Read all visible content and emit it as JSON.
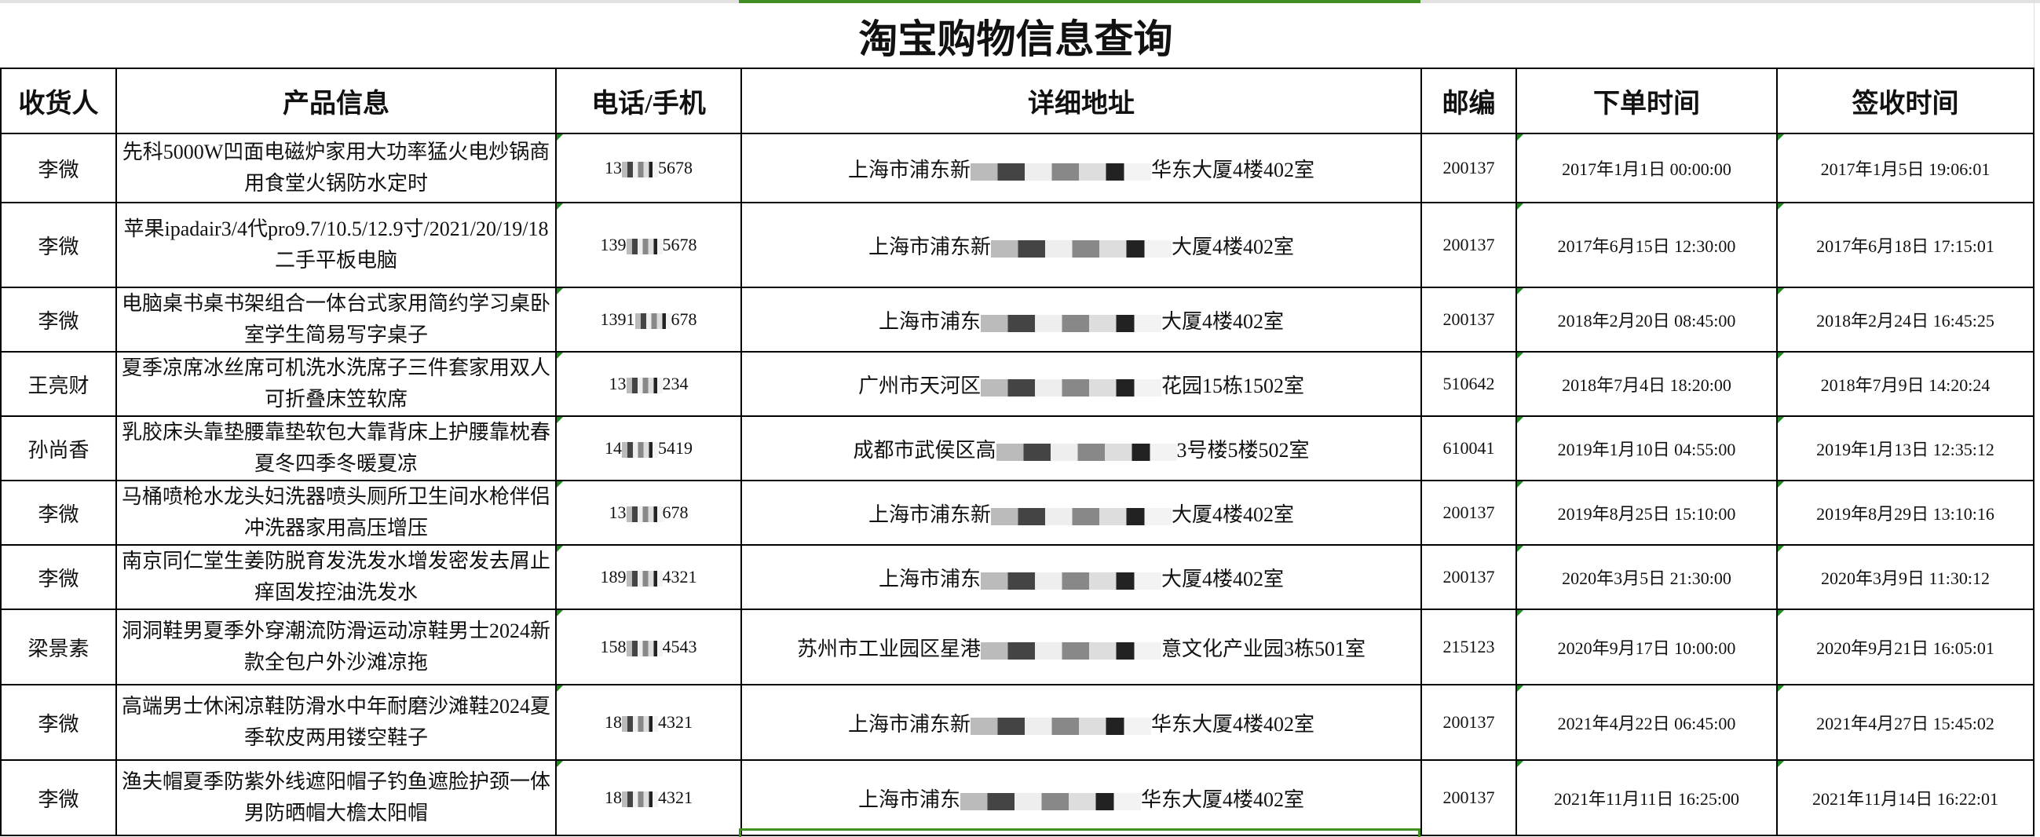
{
  "title": "淘宝购物信息查询",
  "columns": [
    "收货人",
    "产品信息",
    "电话/手机",
    "详细地址",
    "邮编",
    "下单时间",
    "签收时间"
  ],
  "colors": {
    "selection": "#3f8f22",
    "comment_marker": "#1f8a1f"
  },
  "rows": [
    {
      "name": "李微",
      "product": "先科5000W凹面电磁炉家用大功率猛火电炒锅商用食堂火锅防水定时",
      "phone": {
        "prefix": "13",
        "suffix": "5678"
      },
      "address": {
        "prefix": "上海市浦东新",
        "suffix": "华东大厦4楼402室"
      },
      "zip": "200137",
      "order_time": "2017年1月1日 00:00:00",
      "sign_time": "2017年1月5日 19:06:01"
    },
    {
      "name": "李微",
      "product": "苹果ipadair3/4代pro9.7/10.5/12.9寸/2021/20/19/18二手平板电脑",
      "phone": {
        "prefix": "139",
        "suffix": "5678"
      },
      "address": {
        "prefix": "上海市浦东新",
        "suffix": "大厦4楼402室"
      },
      "zip": "200137",
      "order_time": "2017年6月15日 12:30:00",
      "sign_time": "2017年6月18日 17:15:01"
    },
    {
      "name": "李微",
      "product": "电脑桌书桌书架组合一体台式家用简约学习桌卧室学生简易写字桌子",
      "phone": {
        "prefix": "1391",
        "suffix": "678"
      },
      "address": {
        "prefix": "上海市浦东",
        "suffix": "大厦4楼402室"
      },
      "zip": "200137",
      "order_time": "2018年2月20日 08:45:00",
      "sign_time": "2018年2月24日 16:45:25"
    },
    {
      "name": "王亮财",
      "product": "夏季凉席冰丝席可机洗水洗席子三件套家用双人可折叠床笠软席",
      "phone": {
        "prefix": "13",
        "suffix": "234"
      },
      "address": {
        "prefix": "广州市天河区",
        "suffix": "花园15栋1502室"
      },
      "zip": "510642",
      "order_time": "2018年7月4日 18:20:00",
      "sign_time": "2018年7月9日 14:20:24"
    },
    {
      "name": "孙尚香",
      "product": "乳胶床头靠垫腰靠垫软包大靠背床上护腰靠枕春夏冬四季冬暖夏凉",
      "phone": {
        "prefix": "14",
        "suffix": "5419"
      },
      "address": {
        "prefix": "成都市武侯区高",
        "suffix": "3号楼5楼502室"
      },
      "zip": "610041",
      "order_time": "2019年1月10日 04:55:00",
      "sign_time": "2019年1月13日 12:35:12"
    },
    {
      "name": "李微",
      "product": "马桶喷枪水龙头妇洗器喷头厕所卫生间水枪伴侣冲洗器家用高压增压",
      "phone": {
        "prefix": "13",
        "suffix": "678"
      },
      "address": {
        "prefix": "上海市浦东新",
        "suffix": "大厦4楼402室"
      },
      "zip": "200137",
      "order_time": "2019年8月25日 15:10:00",
      "sign_time": "2019年8月29日 13:10:16"
    },
    {
      "name": "李微",
      "product": "南京同仁堂生姜防脱育发洗发水增发密发去屑止痒固发控油洗发水",
      "phone": {
        "prefix": "189",
        "suffix": "4321"
      },
      "address": {
        "prefix": "上海市浦东",
        "suffix": "大厦4楼402室"
      },
      "zip": "200137",
      "order_time": "2020年3月5日 21:30:00",
      "sign_time": "2020年3月9日 11:30:12"
    },
    {
      "name": "梁景素",
      "product": "洞洞鞋男夏季外穿潮流防滑运动凉鞋男士2024新款全包户外沙滩凉拖",
      "phone": {
        "prefix": "158",
        "suffix": "4543"
      },
      "address": {
        "prefix": "苏州市工业园区星港",
        "suffix": "意文化产业园3栋501室"
      },
      "zip": "215123",
      "order_time": "2020年9月17日 10:00:00",
      "sign_time": "2020年9月21日 16:05:01"
    },
    {
      "name": "李微",
      "product": "高端男士休闲凉鞋防滑水中年耐磨沙滩鞋2024夏季软皮两用镂空鞋子",
      "phone": {
        "prefix": "18",
        "suffix": "4321"
      },
      "address": {
        "prefix": "上海市浦东新",
        "suffix": "华东大厦4楼402室"
      },
      "zip": "200137",
      "order_time": "2021年4月22日 06:45:00",
      "sign_time": "2021年4月27日 15:45:02"
    },
    {
      "name": "李微",
      "product": "渔夫帽夏季防紫外线遮阳帽子钓鱼遮脸护颈一体男防晒帽大檐太阳帽",
      "phone": {
        "prefix": "18",
        "suffix": "4321"
      },
      "address": {
        "prefix": "上海市浦东",
        "suffix": "华东大厦4楼402室"
      },
      "zip": "200137",
      "order_time": "2021年11月11日 16:25:00",
      "sign_time": "2021年11月14日 16:22:01"
    }
  ]
}
